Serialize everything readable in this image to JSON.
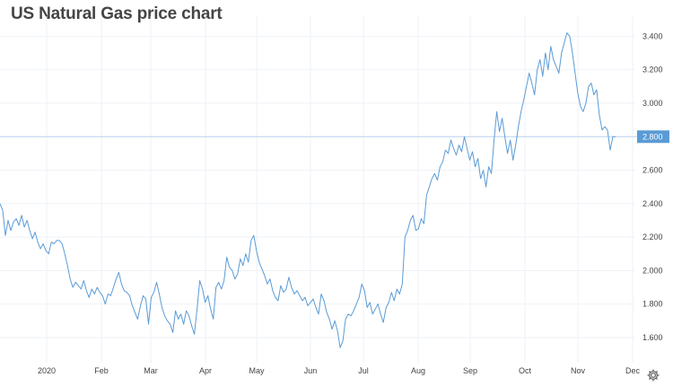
{
  "title": "US Natural Gas price chart",
  "icons": {
    "settings": "gear-icon"
  },
  "colors": {
    "line": "#5b9bd5",
    "price_marker_bg": "#5b9bd5",
    "price_marker_text": "#ffffff",
    "grid": "#eef2f7",
    "current_line": "#bcd4ee"
  },
  "chart_data": {
    "type": "line",
    "title": "US Natural Gas price chart",
    "xlabel": "",
    "ylabel": "",
    "x_tick_labels": [
      "2020",
      "Feb",
      "Mar",
      "Apr",
      "May",
      "Jun",
      "Jul",
      "Aug",
      "Sep",
      "Oct",
      "Nov",
      "Dec"
    ],
    "y_tick_labels": [
      "1.600",
      "1.800",
      "2.000",
      "2.200",
      "2.400",
      "2.600",
      "2.800",
      "3.000",
      "3.200",
      "3.400"
    ],
    "ylim": [
      1.45,
      3.52
    ],
    "grid": true,
    "y_axis_position": "right",
    "current_price": 2.8,
    "current_price_label": "2.800",
    "series": [
      {
        "values": [
          2.4,
          2.36,
          2.21,
          2.3,
          2.24,
          2.29,
          2.31,
          2.27,
          2.33,
          2.26,
          2.3,
          2.24,
          2.19,
          2.23,
          2.17,
          2.13,
          2.16,
          2.12,
          2.1,
          2.17,
          2.16,
          2.18,
          2.18,
          2.16,
          2.1,
          2.03,
          1.95,
          1.9,
          1.93,
          1.91,
          1.89,
          1.94,
          1.88,
          1.84,
          1.89,
          1.86,
          1.9,
          1.87,
          1.85,
          1.8,
          1.86,
          1.85,
          1.9,
          1.95,
          1.99,
          1.92,
          1.88,
          1.87,
          1.85,
          1.79,
          1.75,
          1.71,
          1.79,
          1.85,
          1.83,
          1.68,
          1.84,
          1.87,
          1.93,
          1.86,
          1.78,
          1.73,
          1.7,
          1.68,
          1.63,
          1.76,
          1.71,
          1.74,
          1.68,
          1.76,
          1.73,
          1.67,
          1.62,
          1.77,
          1.94,
          1.89,
          1.81,
          1.85,
          1.77,
          1.71,
          1.9,
          1.93,
          1.89,
          1.94,
          2.08,
          2.02,
          2.0,
          1.95,
          1.98,
          2.07,
          2.03,
          2.1,
          2.05,
          2.18,
          2.21,
          2.12,
          2.05,
          2.01,
          1.97,
          1.92,
          1.95,
          1.88,
          1.84,
          1.82,
          1.91,
          1.87,
          1.89,
          1.96,
          1.9,
          1.86,
          1.88,
          1.85,
          1.82,
          1.84,
          1.79,
          1.81,
          1.83,
          1.78,
          1.74,
          1.86,
          1.82,
          1.75,
          1.71,
          1.65,
          1.7,
          1.64,
          1.54,
          1.58,
          1.71,
          1.74,
          1.73,
          1.76,
          1.8,
          1.84,
          1.92,
          1.88,
          1.78,
          1.81,
          1.74,
          1.77,
          1.8,
          1.74,
          1.69,
          1.78,
          1.81,
          1.87,
          1.82,
          1.89,
          1.86,
          1.92,
          2.2,
          2.24,
          2.3,
          2.33,
          2.24,
          2.25,
          2.31,
          2.28,
          2.45,
          2.5,
          2.55,
          2.58,
          2.54,
          2.62,
          2.65,
          2.72,
          2.7,
          2.78,
          2.73,
          2.69,
          2.75,
          2.71,
          2.8,
          2.73,
          2.66,
          2.71,
          2.62,
          2.67,
          2.55,
          2.6,
          2.5,
          2.62,
          2.58,
          2.78,
          2.95,
          2.83,
          2.91,
          2.8,
          2.7,
          2.78,
          2.66,
          2.75,
          2.86,
          2.95,
          3.02,
          3.1,
          3.18,
          3.12,
          3.05,
          3.2,
          3.26,
          3.16,
          3.3,
          3.2,
          3.34,
          3.26,
          3.22,
          3.18,
          3.3,
          3.36,
          3.42,
          3.4,
          3.3,
          3.18,
          3.06,
          2.98,
          2.95,
          3.0,
          3.1,
          3.12,
          3.05,
          3.08,
          2.93,
          2.84,
          2.86,
          2.84,
          2.72,
          2.8,
          2.8
        ],
        "color": "#5b9bd5"
      }
    ]
  }
}
